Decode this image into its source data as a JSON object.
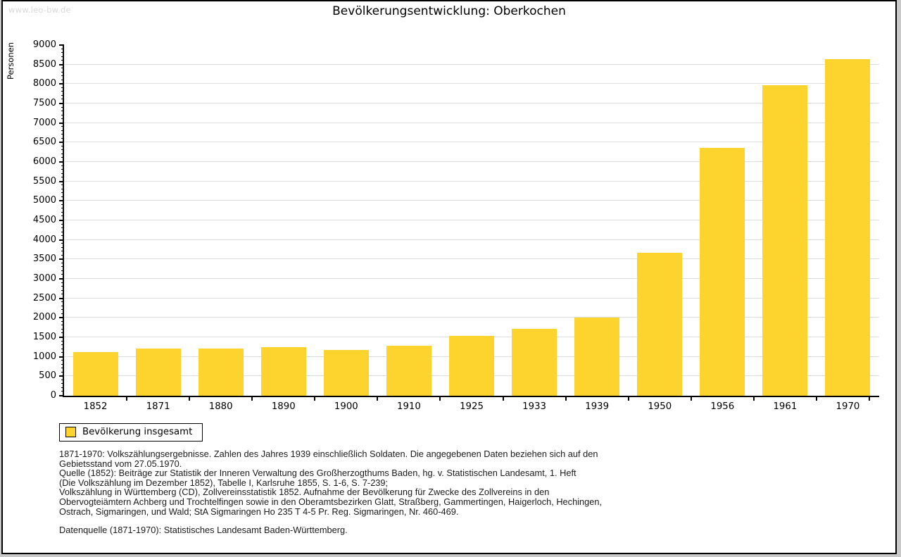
{
  "page": {
    "watermark": "www.leo-bw.de",
    "title": "Bevölkerungsentwicklung: Oberkochen"
  },
  "chart_data": {
    "type": "bar",
    "title": "Bevölkerungsentwicklung: Oberkochen",
    "xlabel": "",
    "ylabel": "Personen",
    "categories": [
      "1852",
      "1871",
      "1880",
      "1890",
      "1900",
      "1910",
      "1925",
      "1933",
      "1939",
      "1950",
      "1956",
      "1961",
      "1970"
    ],
    "values": [
      1129,
      1208,
      1205,
      1248,
      1179,
      1288,
      1531,
      1715,
      2007,
      3677,
      6353,
      7976,
      8645
    ],
    "series_name": "Bevölkerung insgesamt",
    "ylim": [
      0,
      9000
    ],
    "ytick_step": 500,
    "minor_tick_step": 100,
    "grid": true,
    "legend_position": "bottom-left",
    "bar_color": "#FCD42D",
    "grid_color": "#DDDDDD",
    "axis_color": "#000000"
  },
  "legend": {
    "label": "Bevölkerung insgesamt",
    "swatch_color": "#FCD42D"
  },
  "footer": {
    "notes": [
      "1871-1970: Volkszählungsergebnisse. Zahlen des Jahres 1939 einschließlich Soldaten. Die angegebenen Daten beziehen sich auf den",
      "Gebietsstand vom 27.05.1970.",
      "Quelle (1852): Beiträge zur Statistik der Inneren Verwaltung des Großherzogthums Baden, hg. v. Statistischen Landesamt, 1. Heft",
      "(Die Volkszählung im Dezember 1852), Tabelle I, Karlsruhe 1855, S. 1-6, S. 7-239;",
      "Volkszählung in Württemberg (CD), Zollvereinsstatistik 1852. Aufnahme der Bevölkerung für Zwecke des Zollvereins in den",
      "Obervogteiämtern Achberg und Trochtelfingen sowie in den Oberamtsbezirken Glatt, Straßberg, Gammertingen, Haigerloch, Hechingen,",
      "Ostrach, Sigmaringen, und Wald; StA Sigmaringen Ho 235 T 4-5 Pr. Reg. Sigmaringen, Nr. 460-469."
    ],
    "datasource": "Datenquelle (1871-1970): Statistisches Landesamt Baden-Württemberg."
  },
  "colors": {
    "bar_yellow": "#FCD42D",
    "gridline": "#DDDDDD",
    "axis": "#000000",
    "watermark": "#D8D8D8",
    "frame_border": "#000000"
  }
}
